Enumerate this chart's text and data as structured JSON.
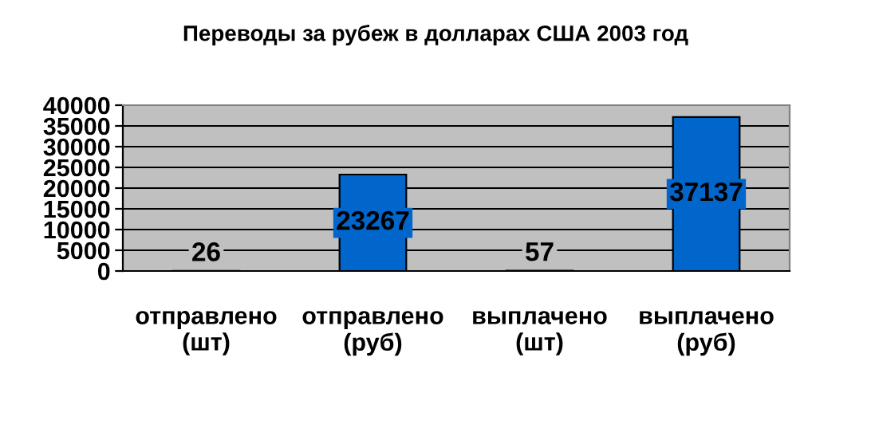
{
  "chart_data": {
    "type": "bar",
    "title": "Переводы за рубеж в долларах США 2003 год",
    "categories": [
      "отправлено\n(шт)",
      "отправлено\n(руб)",
      "выплачено\n(шт)",
      "выплачено\n(руб)"
    ],
    "values": [
      26,
      23267,
      57,
      37137
    ],
    "color": "#0066cc",
    "ylim": [
      0,
      40000
    ],
    "yticks": [
      0,
      5000,
      10000,
      15000,
      20000,
      25000,
      30000,
      35000,
      40000
    ],
    "grid": "y",
    "data_labels": true
  }
}
